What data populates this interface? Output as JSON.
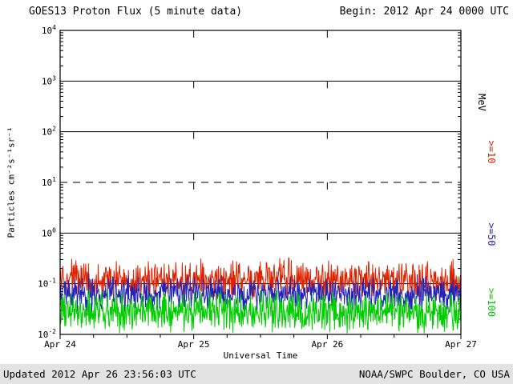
{
  "header": {
    "title": "GOES13 Proton Flux (5 minute data)",
    "begin_label": "Begin: 2012 Apr 24 0000 UTC"
  },
  "footer": {
    "updated": "Updated 2012 Apr 26 23:56:03 UTC",
    "source": "NOAA/SWPC Boulder, CO USA"
  },
  "chart_data": {
    "type": "line",
    "title": "GOES13 Proton Flux (5 minute data)",
    "xlabel": "Universal Time",
    "ylabel": "Particles cm⁻²s⁻¹sr⁻¹",
    "unit_label": "MeV",
    "x_ticks": [
      "Apr 24",
      "Apr 25",
      "Apr 26",
      "Apr 27"
    ],
    "y_ticks": [
      "10^4",
      "10^3",
      "10^2",
      "10^1",
      "10^0",
      "10^-1",
      "10^-2"
    ],
    "y_tick_exponents": [
      4,
      3,
      2,
      1,
      0,
      -1,
      -2
    ],
    "ylim": [
      0.01,
      10000
    ],
    "y_scale": "log",
    "days": 3,
    "samples_per_day": 288,
    "floor_flux": 0.0105,
    "grid": {
      "solid_decades": [
        3,
        2,
        0,
        -1
      ],
      "dashed_decades": [
        1
      ],
      "day_boundaries": [
        1,
        2
      ]
    },
    "legend_position": "right",
    "series": [
      {
        "name": ">=10 MeV",
        "label": ">=10",
        "color": "#dd2200",
        "mean_flux": 0.12,
        "noise_decades": 0.45
      },
      {
        "name": ">=50 MeV",
        "label": ">=50",
        "color": "#2222bb",
        "mean_flux": 0.065,
        "noise_decades": 0.4
      },
      {
        "name": ">=100 MeV",
        "label": ">=100",
        "color": "#00cc00",
        "mean_flux": 0.028,
        "noise_decades": 0.45
      }
    ]
  }
}
